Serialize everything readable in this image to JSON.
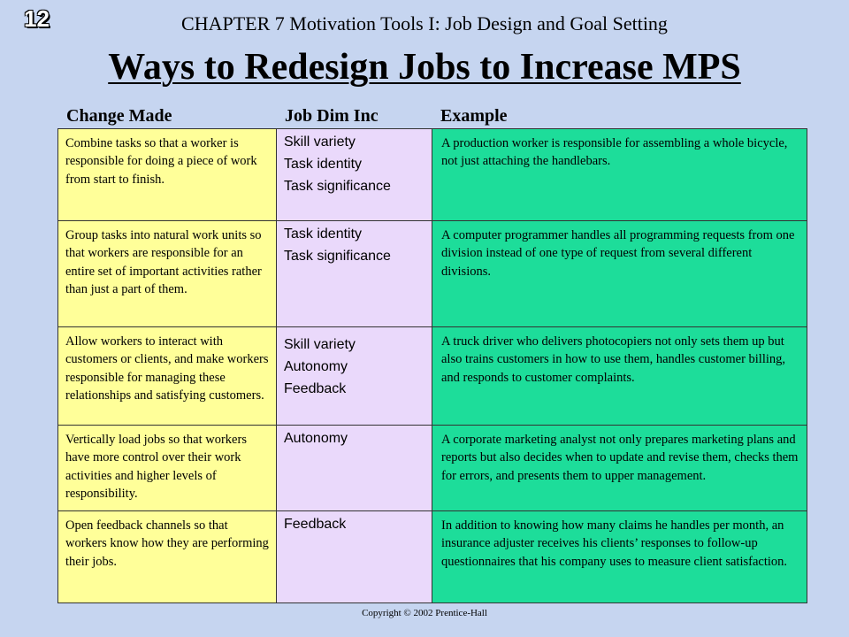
{
  "slide_number": "12",
  "chapter_header": "CHAPTER 7  Motivation Tools I:  Job Design and Goal Setting",
  "title": "Ways to Redesign Jobs to Increase MPS",
  "columns": {
    "change": "Change Made",
    "dim": "Job Dim Inc",
    "example": "Example"
  },
  "rows": [
    {
      "change": "Combine tasks so that a worker is responsible for doing a piece of work from start to finish.",
      "dims": [
        "Skill variety",
        "Task identity",
        "Task significance"
      ],
      "example": "A production worker is responsible  for assembling a whole bicycle, not just attaching the handlebars."
    },
    {
      "change": "Group tasks into natural work units so that workers are responsible for an entire set of important activities rather than just a part of them.",
      "dims": [
        "Task identity",
        "Task significance"
      ],
      "example": "A computer programmer handles all programming requests from one division instead of one type of request from several different divisions."
    },
    {
      "change": "Allow workers to interact with customers or clients, and make workers responsible for managing these relationships and satisfying customers.",
      "dims": [
        "Skill variety",
        "Autonomy",
        "Feedback"
      ],
      "example": "A truck driver who delivers photocopiers not only sets them up but also trains customers in how to use them, handles customer billing, and responds to customer complaints."
    },
    {
      "change": "Vertically load jobs so that workers have more control over their work activities and higher levels of responsibility.",
      "dims": [
        "Autonomy"
      ],
      "example": "A corporate marketing analyst not only prepares marketing plans and reports but also decides when to update and revise them, checks them for errors, and presents them to upper management."
    },
    {
      "change": "Open feedback channels so that workers know how they are performing their jobs.",
      "dims": [
        "Feedback"
      ],
      "example": "In addition to knowing how many claims he handles per month, an insurance adjuster receives his clients’ responses to follow-up questionnaires that his company uses to measure client satisfaction."
    }
  ],
  "footer": "Copyright © 2002 Prentice-Hall",
  "colors": {
    "background": "#c6d5f0",
    "change_cell": "#ffff99",
    "dim_cell": "#ead9fb",
    "example_cell": "#1ddd9a"
  }
}
